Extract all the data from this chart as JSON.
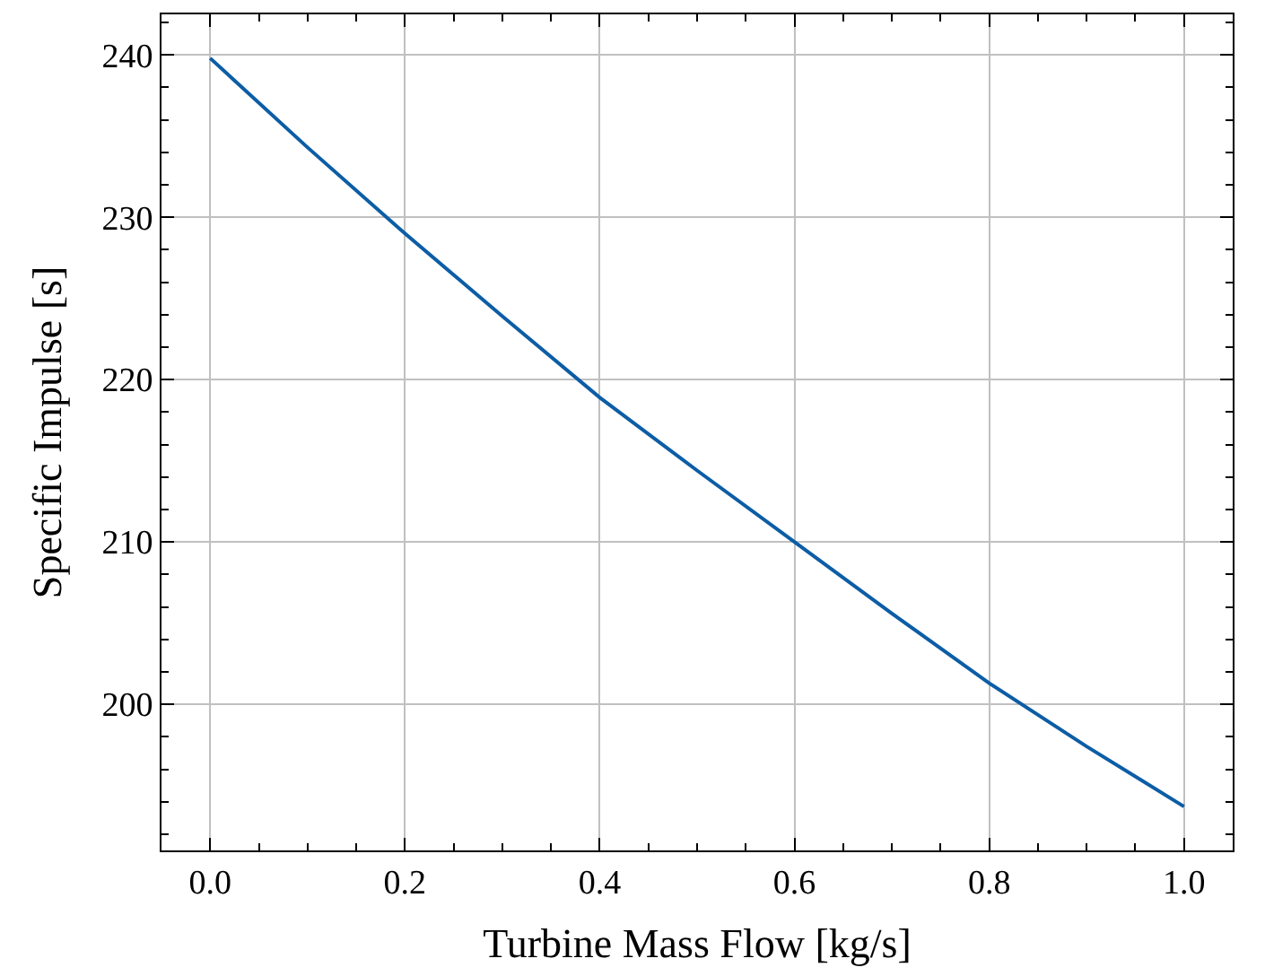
{
  "chart_data": {
    "type": "line",
    "xlabel": "Turbine Mass Flow [kg/s]",
    "ylabel": "Specific Impulse [s]",
    "x": [
      0,
      0.1,
      0.2,
      0.3,
      0.4,
      0.5,
      0.6,
      0.7,
      0.8,
      0.9,
      1.0
    ],
    "series": [
      {
        "color": "#0c5da5",
        "values": [
          239.8,
          234.3,
          229.0,
          223.9,
          218.9,
          214.4,
          210.0,
          205.6,
          201.3,
          197.4,
          193.7
        ]
      }
    ],
    "xlim": [
      -0.05,
      1.05
    ],
    "ylim": [
      191,
      242.5
    ],
    "xticks": [
      {
        "value": 0,
        "label": "0.0"
      },
      0.2,
      0.4,
      0.6,
      0.8,
      {
        "value": 1,
        "label": "1.0"
      }
    ],
    "yticks": [
      200,
      210,
      220,
      230,
      240
    ],
    "grid": true,
    "marker": "none",
    "line_style": "solid"
  }
}
